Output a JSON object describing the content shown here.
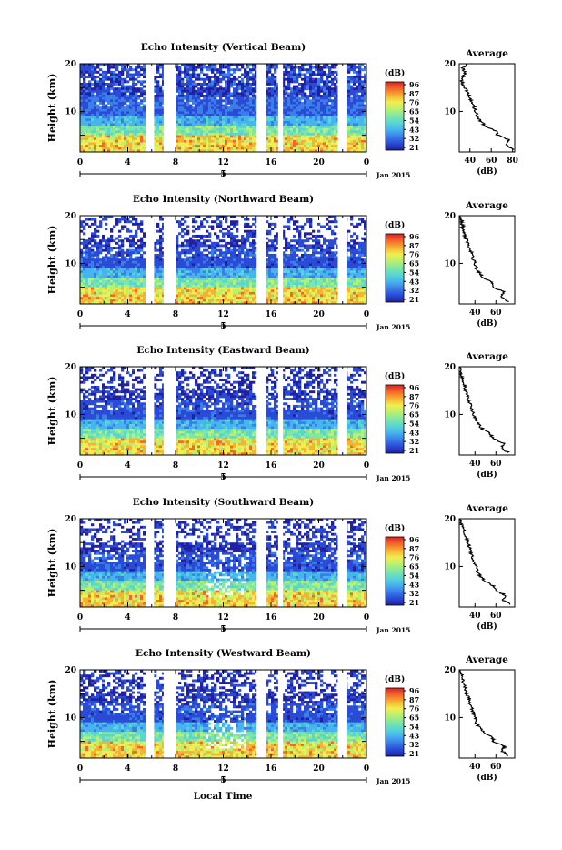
{
  "figure": {
    "xlabel": "Local Time",
    "date_label": "Jan 2015",
    "ylabel": "Height (km)",
    "colorbar_unit": "(dB)",
    "colorbar_ticks": [
      "96",
      "87",
      "76",
      "65",
      "54",
      "43",
      "32",
      "21"
    ],
    "profile_title": "Average",
    "profile_xlabel": "(dB)",
    "time_ticks": [
      "0",
      "4",
      "8",
      "12",
      "16",
      "20",
      "0"
    ],
    "date_tick": "5",
    "height_ticks": [
      "20",
      "10"
    ],
    "colormap": [
      "#2020a0",
      "#2a4bd6",
      "#3a7ee8",
      "#46b4ee",
      "#5ad6d2",
      "#7fe6a4",
      "#b8f070",
      "#f2ee50",
      "#f6b232",
      "#f2682a",
      "#dd2222"
    ]
  },
  "chart_data": [
    {
      "type": "heatmap",
      "title": "Echo Intensity (Vertical Beam)",
      "xlabel": "Local Time",
      "ylabel": "Height (km)",
      "xlim": [
        0,
        24
      ],
      "ylim": [
        1.5,
        20
      ],
      "zlim": [
        21,
        96
      ],
      "data_gaps_hours": [
        [
          5.5,
          6.2
        ],
        [
          7.0,
          8.0
        ],
        [
          14.8,
          15.6
        ],
        [
          16.6,
          17.0
        ],
        [
          21.6,
          22.4
        ]
      ],
      "avg_profile": {
        "xticks": [
          "40",
          "60",
          "80"
        ],
        "xlim": [
          30,
          82
        ],
        "height_km": [
          2,
          3,
          4,
          5,
          6,
          7,
          8,
          9,
          10,
          11,
          12,
          13,
          14,
          15,
          16,
          17,
          18,
          19,
          20
        ],
        "intensity_db": [
          80,
          74,
          77,
          66,
          64,
          54,
          50,
          47,
          45,
          44,
          42,
          40,
          38,
          35,
          33,
          32,
          36,
          33,
          38
        ]
      }
    },
    {
      "type": "heatmap",
      "title": "Echo Intensity (Northward Beam)",
      "xlabel": "Local Time",
      "ylabel": "Height (km)",
      "xlim": [
        0,
        24
      ],
      "ylim": [
        1.5,
        20
      ],
      "zlim": [
        21,
        96
      ],
      "data_gaps_hours": [
        [
          5.5,
          6.2
        ],
        [
          7.0,
          8.0
        ],
        [
          14.8,
          15.6
        ],
        [
          16.6,
          17.0
        ],
        [
          21.6,
          22.4
        ]
      ],
      "avg_profile": {
        "xticks": [
          "40",
          "60"
        ],
        "xlim": [
          25,
          78
        ],
        "height_km": [
          2,
          3,
          4,
          5,
          6,
          7,
          8,
          9,
          10,
          11,
          12,
          13,
          14,
          15,
          16,
          17,
          18,
          19,
          20
        ],
        "intensity_db": [
          72,
          66,
          68,
          58,
          56,
          48,
          44,
          41,
          40,
          38,
          37,
          35,
          34,
          32,
          30,
          29,
          28,
          27,
          26
        ]
      }
    },
    {
      "type": "heatmap",
      "title": "Echo Intensity (Eastward Beam)",
      "xlabel": "Local Time",
      "ylabel": "Height (km)",
      "xlim": [
        0,
        24
      ],
      "ylim": [
        1.5,
        20
      ],
      "zlim": [
        21,
        96
      ],
      "data_gaps_hours": [
        [
          5.5,
          6.2
        ],
        [
          7.0,
          8.0
        ],
        [
          14.8,
          15.6
        ],
        [
          16.6,
          17.0
        ],
        [
          21.6,
          22.4
        ]
      ],
      "avg_profile": {
        "xticks": [
          "40",
          "60"
        ],
        "xlim": [
          25,
          78
        ],
        "height_km": [
          2,
          3,
          4,
          5,
          6,
          7,
          8,
          9,
          10,
          11,
          12,
          13,
          14,
          15,
          16,
          17,
          18,
          19,
          20
        ],
        "intensity_db": [
          72,
          65,
          67,
          57,
          55,
          47,
          43,
          40,
          39,
          37,
          36,
          34,
          33,
          31,
          30,
          28,
          27,
          26,
          26
        ]
      }
    },
    {
      "type": "heatmap",
      "title": "Echo Intensity (Southward Beam)",
      "xlabel": "Local Time",
      "ylabel": "Height (km)",
      "xlim": [
        0,
        24
      ],
      "ylim": [
        1.5,
        20
      ],
      "zlim": [
        21,
        96
      ],
      "data_gaps_hours": [
        [
          5.5,
          6.2
        ],
        [
          7.0,
          8.0
        ],
        [
          14.8,
          15.6
        ],
        [
          16.6,
          17.0
        ],
        [
          21.6,
          22.4
        ]
      ],
      "avg_profile": {
        "xticks": [
          "40",
          "60"
        ],
        "xlim": [
          25,
          78
        ],
        "height_km": [
          2,
          3,
          4,
          5,
          6,
          7,
          8,
          9,
          10,
          11,
          12,
          13,
          14,
          15,
          16,
          17,
          18,
          19,
          20
        ],
        "intensity_db": [
          74,
          67,
          69,
          59,
          57,
          49,
          45,
          42,
          41,
          39,
          38,
          36,
          35,
          33,
          32,
          30,
          29,
          27,
          26
        ]
      }
    },
    {
      "type": "heatmap",
      "title": "Echo Intensity (Westward Beam)",
      "xlabel": "Local Time",
      "ylabel": "Height (km)",
      "xlim": [
        0,
        24
      ],
      "ylim": [
        1.5,
        20
      ],
      "zlim": [
        21,
        96
      ],
      "data_gaps_hours": [
        [
          5.5,
          6.2
        ],
        [
          7.0,
          8.0
        ],
        [
          14.8,
          15.6
        ],
        [
          16.6,
          17.0
        ],
        [
          21.6,
          22.4
        ]
      ],
      "avg_profile": {
        "xticks": [
          "40",
          "60"
        ],
        "xlim": [
          25,
          78
        ],
        "height_km": [
          2,
          3,
          4,
          5,
          6,
          7,
          8,
          9,
          10,
          11,
          12,
          13,
          14,
          15,
          16,
          17,
          18,
          19,
          20
        ],
        "intensity_db": [
          72,
          66,
          68,
          58,
          56,
          48,
          44,
          41,
          40,
          38,
          37,
          35,
          34,
          32,
          31,
          29,
          28,
          27,
          26
        ]
      }
    }
  ]
}
